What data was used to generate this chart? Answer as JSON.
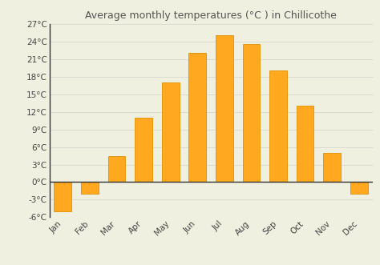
{
  "title": "Average monthly temperatures (°C ) in Chillicothe",
  "months": [
    "Jan",
    "Feb",
    "Mar",
    "Apr",
    "May",
    "Jun",
    "Jul",
    "Aug",
    "Sep",
    "Oct",
    "Nov",
    "Dec"
  ],
  "values": [
    -5.0,
    -2.0,
    4.5,
    11.0,
    17.0,
    22.0,
    25.0,
    23.5,
    19.0,
    13.0,
    5.0,
    -2.0
  ],
  "bar_color": "#FFA820",
  "bar_edge_color": "#E09000",
  "ylim": [
    -6,
    27
  ],
  "yticks": [
    -6,
    -3,
    0,
    3,
    6,
    9,
    12,
    15,
    18,
    21,
    24,
    27
  ],
  "background_color": "#f0f0e0",
  "grid_color": "#d8d8d0",
  "title_fontsize": 9,
  "tick_fontsize": 7.5,
  "zero_line_color": "#333333",
  "left_spine_color": "#333333"
}
